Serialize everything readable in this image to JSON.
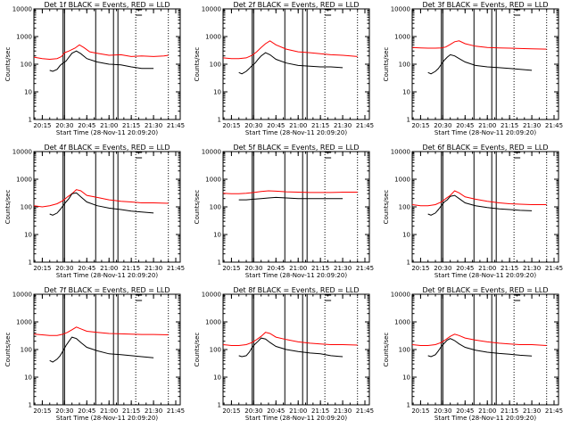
{
  "chart_data": [
    {
      "type": "line",
      "title": "Det 1f BLACK = Events, RED = LLD",
      "xlabel": "Start Time (28-Nov-11 20:09:20)",
      "ylabel": "Counts/sec",
      "ylim": [
        1,
        10000
      ],
      "y_scale": "log",
      "x_ticks": [
        "20:15",
        "20:30",
        "20:45",
        "21:00",
        "21:15",
        "21:30",
        "21:45"
      ],
      "y_ticks": [
        "1",
        "10",
        "100",
        "1000",
        "10000"
      ],
      "series": [
        {
          "color": "#ff0000",
          "x": [
            "20:09:20",
            "20:15",
            "20:20",
            "20:25",
            "20:28",
            "20:30",
            "20:33",
            "20:37",
            "20:40",
            "20:43",
            "20:47",
            "20:52",
            "21:00",
            "21:08",
            "21:15",
            "21:22",
            "21:30",
            "21:37",
            "21:40"
          ],
          "values": [
            180,
            160,
            150,
            160,
            190,
            260,
            300,
            380,
            500,
            400,
            280,
            250,
            210,
            220,
            190,
            200,
            190,
            200,
            210
          ]
        },
        {
          "color": "#000000",
          "x": [
            "20:20",
            "20:22",
            "20:25",
            "20:27",
            "20:29",
            "20:31",
            "20:33",
            "20:35",
            "20:38",
            "20:41",
            "20:45",
            "20:52",
            "21:00",
            "21:08",
            "21:15",
            "21:22",
            "21:30"
          ],
          "values": [
            60,
            55,
            65,
            90,
            110,
            130,
            180,
            250,
            300,
            240,
            160,
            120,
            100,
            95,
            80,
            70,
            70
          ]
        }
      ]
    },
    {
      "type": "line",
      "title": "Det 2f BLACK = Events, RED = LLD",
      "xlabel": "Start Time (28-Nov-11 20:09:20)",
      "ylabel": "Counts/sec",
      "ylim": [
        1,
        10000
      ],
      "y_scale": "log",
      "x_ticks": [
        "20:15",
        "20:30",
        "20:45",
        "21:00",
        "21:15",
        "21:30",
        "21:45"
      ],
      "y_ticks": [
        "1",
        "10",
        "100",
        "1000",
        "10000"
      ],
      "series": [
        {
          "color": "#ff0000",
          "x": [
            "20:09:20",
            "20:15",
            "20:20",
            "20:25",
            "20:29",
            "20:32",
            "20:35",
            "20:38",
            "20:41",
            "20:45",
            "20:52",
            "21:00",
            "21:08",
            "21:15",
            "21:22",
            "21:30",
            "21:40"
          ],
          "values": [
            170,
            160,
            160,
            170,
            210,
            280,
            400,
            550,
            700,
            500,
            350,
            280,
            260,
            240,
            220,
            210,
            190
          ]
        },
        {
          "color": "#000000",
          "x": [
            "20:20",
            "20:22",
            "20:25",
            "20:27",
            "20:29",
            "20:31",
            "20:33",
            "20:35",
            "20:38",
            "20:41",
            "20:45",
            "20:52",
            "21:00",
            "21:08",
            "21:15",
            "21:22",
            "21:30"
          ],
          "values": [
            50,
            45,
            55,
            70,
            90,
            110,
            150,
            200,
            260,
            220,
            150,
            110,
            90,
            85,
            80,
            80,
            75
          ]
        }
      ]
    },
    {
      "type": "line",
      "title": "Det 3f BLACK = Events, RED = LLD",
      "xlabel": "Start Time (28-Nov-11 20:09:20)",
      "ylabel": "Counts/sec",
      "ylim": [
        1,
        10000
      ],
      "y_scale": "log",
      "x_ticks": [
        "20:15",
        "20:30",
        "20:45",
        "21:00",
        "21:15",
        "21:30",
        "21:45"
      ],
      "y_ticks": [
        "1",
        "10",
        "100",
        "1000",
        "10000"
      ],
      "series": [
        {
          "color": "#ff0000",
          "x": [
            "20:09:20",
            "20:15",
            "20:20",
            "20:25",
            "20:29",
            "20:32",
            "20:35",
            "20:38",
            "20:41",
            "20:45",
            "20:52",
            "21:00",
            "21:08",
            "21:15",
            "21:22",
            "21:30",
            "21:40"
          ],
          "values": [
            400,
            390,
            380,
            380,
            390,
            420,
            520,
            650,
            700,
            550,
            450,
            400,
            390,
            380,
            370,
            360,
            350
          ]
        },
        {
          "color": "#000000",
          "x": [
            "20:20",
            "20:22",
            "20:25",
            "20:27",
            "20:29",
            "20:31",
            "20:33",
            "20:35",
            "20:38",
            "20:41",
            "20:45",
            "20:52",
            "21:00",
            "21:08",
            "21:15",
            "21:22",
            "21:30"
          ],
          "values": [
            50,
            45,
            55,
            70,
            100,
            140,
            180,
            220,
            200,
            160,
            120,
            90,
            80,
            75,
            70,
            65,
            60
          ]
        }
      ]
    },
    {
      "type": "line",
      "title": "Det 4f BLACK = Events, RED = LLD",
      "xlabel": "Start Time (28-Nov-11 20:09:20)",
      "ylabel": "Counts/sec",
      "ylim": [
        1,
        10000
      ],
      "y_scale": "log",
      "x_ticks": [
        "20:15",
        "20:30",
        "20:45",
        "21:00",
        "21:15",
        "21:30",
        "21:45"
      ],
      "y_ticks": [
        "1",
        "10",
        "100",
        "1000",
        "10000"
      ],
      "series": [
        {
          "color": "#ff0000",
          "x": [
            "20:09:20",
            "20:15",
            "20:20",
            "20:25",
            "20:29",
            "20:32",
            "20:35",
            "20:38",
            "20:41",
            "20:45",
            "20:52",
            "21:00",
            "21:08",
            "21:15",
            "21:22",
            "21:30",
            "21:40"
          ],
          "values": [
            110,
            100,
            110,
            130,
            170,
            230,
            300,
            420,
            380,
            260,
            220,
            180,
            160,
            150,
            140,
            140,
            135
          ]
        },
        {
          "color": "#000000",
          "x": [
            "20:20",
            "20:22",
            "20:25",
            "20:27",
            "20:29",
            "20:31",
            "20:33",
            "20:35",
            "20:38",
            "20:41",
            "20:45",
            "20:52",
            "21:00",
            "21:08",
            "21:15",
            "21:22",
            "21:30"
          ],
          "values": [
            55,
            50,
            60,
            80,
            110,
            150,
            200,
            300,
            320,
            230,
            150,
            110,
            90,
            80,
            70,
            65,
            60
          ]
        }
      ]
    },
    {
      "type": "line",
      "title": "Det 5f BLACK = Events, RED = LLD",
      "xlabel": "Start Time (28-Nov-11 20:09:20)",
      "ylabel": "Counts/sec",
      "ylim": [
        1,
        10000
      ],
      "y_scale": "log",
      "x_ticks": [
        "20:15",
        "20:30",
        "20:45",
        "21:00",
        "21:15",
        "21:30",
        "21:45"
      ],
      "y_ticks": [
        "1",
        "10",
        "100",
        "1000",
        "10000"
      ],
      "series": [
        {
          "color": "#ff0000",
          "x": [
            "20:09:20",
            "20:15",
            "20:20",
            "20:25",
            "20:30",
            "20:35",
            "20:40",
            "20:45",
            "20:52",
            "21:00",
            "21:08",
            "21:15",
            "21:22",
            "21:30",
            "21:40"
          ],
          "values": [
            310,
            300,
            300,
            310,
            330,
            360,
            380,
            370,
            350,
            340,
            330,
            330,
            330,
            340,
            340
          ]
        },
        {
          "color": "#000000",
          "x": [
            "20:20",
            "20:25",
            "20:30",
            "20:35",
            "20:40",
            "20:45",
            "20:52",
            "21:00",
            "21:08",
            "21:15",
            "21:22",
            "21:30"
          ],
          "values": [
            180,
            180,
            190,
            200,
            210,
            220,
            210,
            200,
            200,
            200,
            200,
            200
          ]
        }
      ]
    },
    {
      "type": "line",
      "title": "Det 6f BLACK = Events, RED = LLD",
      "xlabel": "Start Time (28-Nov-11 20:09:20)",
      "ylabel": "Counts/sec",
      "ylim": [
        1,
        10000
      ],
      "y_scale": "log",
      "x_ticks": [
        "20:15",
        "20:30",
        "20:45",
        "21:00",
        "21:15",
        "21:30",
        "21:45"
      ],
      "y_ticks": [
        "1",
        "10",
        "100",
        "1000",
        "10000"
      ],
      "series": [
        {
          "color": "#ff0000",
          "x": [
            "20:09:20",
            "20:15",
            "20:20",
            "20:25",
            "20:29",
            "20:32",
            "20:35",
            "20:38",
            "20:41",
            "20:45",
            "20:52",
            "21:00",
            "21:08",
            "21:15",
            "21:22",
            "21:30",
            "21:40"
          ],
          "values": [
            120,
            110,
            110,
            120,
            150,
            200,
            260,
            380,
            320,
            230,
            190,
            160,
            140,
            130,
            125,
            120,
            120
          ]
        },
        {
          "color": "#000000",
          "x": [
            "20:20",
            "20:22",
            "20:25",
            "20:27",
            "20:29",
            "20:31",
            "20:33",
            "20:35",
            "20:38",
            "20:41",
            "20:45",
            "20:52",
            "21:00",
            "21:08",
            "21:15",
            "21:22",
            "21:30"
          ],
          "values": [
            55,
            50,
            60,
            80,
            110,
            150,
            180,
            240,
            260,
            200,
            140,
            110,
            95,
            85,
            80,
            75,
            72
          ]
        }
      ]
    },
    {
      "type": "line",
      "title": "Det 7f BLACK = Events, RED = LLD",
      "xlabel": "Start Time (28-Nov-11 20:09:20)",
      "ylabel": "Counts/sec",
      "ylim": [
        1,
        10000
      ],
      "y_scale": "log",
      "x_ticks": [
        "20:15",
        "20:30",
        "20:45",
        "21:00",
        "21:15",
        "21:30",
        "21:45"
      ],
      "y_ticks": [
        "1",
        "10",
        "100",
        "1000",
        "10000"
      ],
      "series": [
        {
          "color": "#ff0000",
          "x": [
            "20:09:20",
            "20:15",
            "20:20",
            "20:25",
            "20:29",
            "20:32",
            "20:35",
            "20:38",
            "20:41",
            "20:45",
            "20:52",
            "21:00",
            "21:08",
            "21:15",
            "21:22",
            "21:30",
            "21:40"
          ],
          "values": [
            360,
            340,
            320,
            320,
            360,
            420,
            520,
            650,
            560,
            460,
            420,
            380,
            370,
            360,
            350,
            350,
            340
          ]
        },
        {
          "color": "#000000",
          "x": [
            "20:20",
            "20:22",
            "20:25",
            "20:27",
            "20:29",
            "20:31",
            "20:33",
            "20:35",
            "20:38",
            "20:41",
            "20:45",
            "20:52",
            "21:00",
            "21:08",
            "21:15",
            "21:22",
            "21:30"
          ],
          "values": [
            40,
            35,
            45,
            60,
            90,
            140,
            200,
            280,
            250,
            180,
            120,
            90,
            70,
            65,
            60,
            55,
            50
          ]
        }
      ]
    },
    {
      "type": "line",
      "title": "Det 8f BLACK = Events, RED = LLD",
      "xlabel": "Start Time (28-Nov-11 20:09:20)",
      "ylabel": "Counts/sec",
      "ylim": [
        1,
        10000
      ],
      "y_scale": "log",
      "x_ticks": [
        "20:15",
        "20:30",
        "20:45",
        "21:00",
        "21:15",
        "21:30",
        "21:45"
      ],
      "y_ticks": [
        "1",
        "10",
        "100",
        "1000",
        "10000"
      ],
      "series": [
        {
          "color": "#ff0000",
          "x": [
            "20:09:20",
            "20:15",
            "20:20",
            "20:25",
            "20:29",
            "20:32",
            "20:35",
            "20:38",
            "20:41",
            "20:45",
            "20:52",
            "21:00",
            "21:08",
            "21:15",
            "21:22",
            "21:30",
            "21:40"
          ],
          "values": [
            150,
            140,
            140,
            150,
            180,
            230,
            300,
            420,
            380,
            280,
            230,
            190,
            170,
            160,
            150,
            150,
            145
          ]
        },
        {
          "color": "#000000",
          "x": [
            "20:20",
            "20:22",
            "20:25",
            "20:27",
            "20:29",
            "20:31",
            "20:33",
            "20:35",
            "20:38",
            "20:41",
            "20:45",
            "20:52",
            "21:00",
            "21:08",
            "21:15",
            "21:22",
            "21:30"
          ],
          "values": [
            60,
            55,
            60,
            80,
            120,
            160,
            200,
            260,
            240,
            180,
            130,
            100,
            85,
            75,
            70,
            60,
            55
          ]
        }
      ]
    },
    {
      "type": "line",
      "title": "Det 9f BLACK = Events, RED = LLD",
      "xlabel": "Start Time (28-Nov-11 20:09:20)",
      "ylabel": "Counts/sec",
      "ylim": [
        1,
        10000
      ],
      "y_scale": "log",
      "x_ticks": [
        "20:15",
        "20:30",
        "20:45",
        "21:00",
        "21:15",
        "21:30",
        "21:45"
      ],
      "y_ticks": [
        "1",
        "10",
        "100",
        "1000",
        "10000"
      ],
      "series": [
        {
          "color": "#ff0000",
          "x": [
            "20:09:20",
            "20:15",
            "20:20",
            "20:25",
            "20:29",
            "20:32",
            "20:35",
            "20:38",
            "20:41",
            "20:45",
            "20:52",
            "21:00",
            "21:08",
            "21:15",
            "21:22",
            "21:30",
            "21:40"
          ],
          "values": [
            150,
            140,
            140,
            150,
            180,
            230,
            300,
            360,
            320,
            260,
            220,
            190,
            170,
            160,
            150,
            150,
            140
          ]
        },
        {
          "color": "#000000",
          "x": [
            "20:20",
            "20:22",
            "20:25",
            "20:27",
            "20:29",
            "20:31",
            "20:33",
            "20:35",
            "20:38",
            "20:41",
            "20:45",
            "20:52",
            "21:00",
            "21:08",
            "21:15",
            "21:22",
            "21:30"
          ],
          "values": [
            60,
            55,
            65,
            90,
            130,
            170,
            220,
            250,
            210,
            160,
            120,
            95,
            80,
            72,
            68,
            62,
            58
          ]
        }
      ]
    }
  ]
}
